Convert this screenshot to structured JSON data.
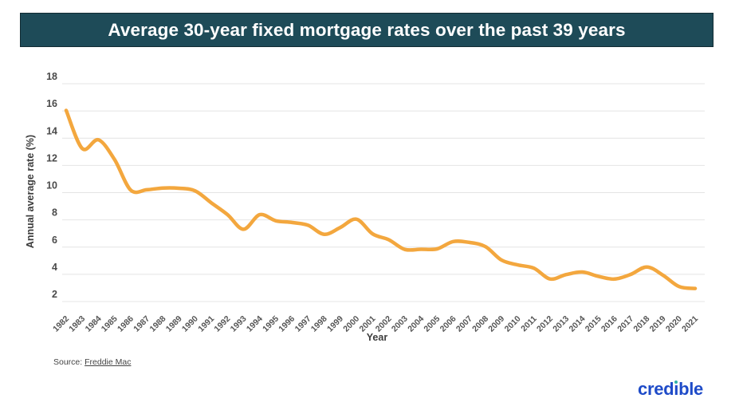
{
  "header": {
    "title": "Average 30-year fixed mortgage rates over the past 39 years",
    "bar_color": "#1E4B58"
  },
  "chart_data": {
    "type": "line",
    "title": "Average 30-year fixed mortgage rates over the past 39 years",
    "xlabel": "Year",
    "ylabel": "Annual average rate (%)",
    "x": [
      1982,
      1983,
      1984,
      1985,
      1986,
      1987,
      1988,
      1989,
      1990,
      1991,
      1992,
      1993,
      1994,
      1995,
      1996,
      1997,
      1998,
      1999,
      2000,
      2001,
      2002,
      2003,
      2004,
      2005,
      2006,
      2007,
      2008,
      2009,
      2010,
      2011,
      2012,
      2013,
      2014,
      2015,
      2016,
      2017,
      2018,
      2019,
      2020,
      2021
    ],
    "series": [
      {
        "name": "Average 30-year fixed mortgage rate",
        "color": "#F3A73E",
        "values": [
          16.04,
          13.24,
          13.88,
          12.43,
          10.19,
          10.21,
          10.34,
          10.32,
          10.13,
          9.25,
          8.39,
          7.31,
          8.38,
          7.93,
          7.81,
          7.6,
          6.94,
          7.44,
          8.05,
          6.97,
          6.54,
          5.83,
          5.84,
          5.87,
          6.41,
          6.34,
          6.03,
          5.04,
          4.69,
          4.45,
          3.66,
          3.98,
          4.17,
          3.85,
          3.65,
          3.99,
          4.54,
          3.94,
          3.1,
          2.96
        ]
      }
    ],
    "ylim": [
      2,
      18
    ],
    "yticks": [
      2,
      4,
      6,
      8,
      10,
      12,
      14,
      16,
      18
    ],
    "grid": "horizontal",
    "gridline_color": "#E4E4E4",
    "smoothing": true,
    "legend": "none"
  },
  "footer": {
    "source_label": "Source:",
    "source_link": "Freddie Mac",
    "logo_text": "credible",
    "logo_color": "#1E4BC8",
    "logo_dot_color": "#2FB3A8"
  }
}
